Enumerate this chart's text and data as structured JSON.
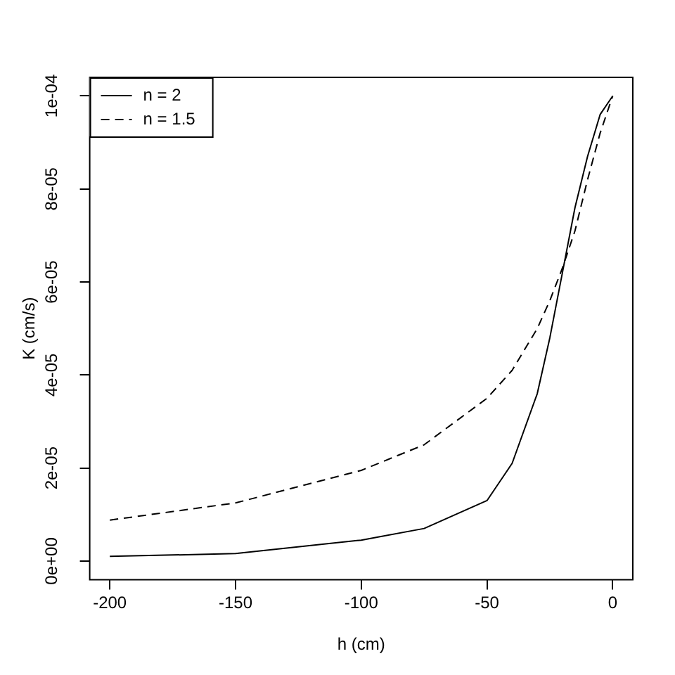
{
  "chart_data": {
    "type": "line",
    "xlabel": "h (cm)",
    "ylabel": "K (cm/s)",
    "xlim": [
      -208,
      8
    ],
    "ylim": [
      -4e-06,
      0.000104
    ],
    "xticks": [
      -200,
      -150,
      -100,
      -50,
      0
    ],
    "yticks": [
      {
        "value": 0,
        "label": "0e+00"
      },
      {
        "value": 2e-05,
        "label": "2e-05"
      },
      {
        "value": 4e-05,
        "label": "4e-05"
      },
      {
        "value": 6e-05,
        "label": "6e-05"
      },
      {
        "value": 8e-05,
        "label": "8e-05"
      },
      {
        "value": 0.0001,
        "label": "1e-04"
      }
    ],
    "grid": false,
    "legend": "top left",
    "marker": "none",
    "series": [
      {
        "name": "n = 2",
        "color": "#000000",
        "line_style": "solid",
        "x": [
          -200,
          -150,
          -100,
          -75,
          -50,
          -40,
          -30,
          -25,
          -20,
          -15,
          -10,
          -5,
          0
        ],
        "values": [
          1e-06,
          1.6e-06,
          4.5e-06,
          7e-06,
          1.3e-05,
          2.1e-05,
          3.6e-05,
          4.8e-05,
          6.2e-05,
          7.6e-05,
          8.7e-05,
          9.6e-05,
          0.0001
        ]
      },
      {
        "name": "n = 1.5",
        "color": "#000000",
        "line_style": "dashed",
        "x": [
          -200,
          -150,
          -100,
          -75,
          -50,
          -40,
          -30,
          -25,
          -20,
          -15,
          -10,
          -5,
          0
        ],
        "values": [
          8.8e-06,
          1.25e-05,
          1.95e-05,
          2.5e-05,
          3.5e-05,
          4.1e-05,
          5e-05,
          5.6e-05,
          6.3e-05,
          7.1e-05,
          8.2e-05,
          9.2e-05,
          0.0001
        ]
      }
    ]
  }
}
